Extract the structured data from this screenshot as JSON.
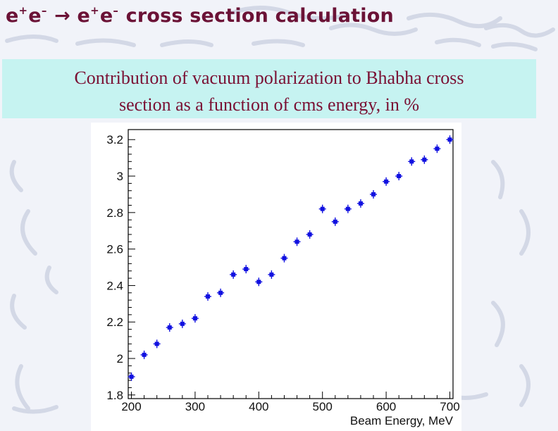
{
  "slide": {
    "title_parts": [
      "e",
      "+",
      "e",
      "–",
      " → ",
      "e",
      "+",
      "e",
      "–",
      " cross section calculation"
    ],
    "caption_line1": "Contribution of vacuum polarization to Bhabha cross",
    "caption_line2": "section as a function of cms energy, in %",
    "title_color": "#6b1236",
    "caption_color": "#7a1033",
    "caption_bg": "#c6f3f1"
  },
  "chart_data": {
    "type": "scatter",
    "title": "",
    "xlabel": "Beam Energy, MeV",
    "ylabel": "",
    "xlim": [
      195,
      705
    ],
    "ylim": [
      1.78,
      3.255
    ],
    "xticks": [
      200,
      300,
      400,
      500,
      600,
      700
    ],
    "xtick_labels": [
      "200",
      "300",
      "400",
      "500",
      "600",
      "700"
    ],
    "yticks": [
      1.8,
      2,
      2.2,
      2.4,
      2.6,
      2.8,
      3,
      3.2
    ],
    "ytick_labels": [
      "1.8",
      "2",
      "2.2",
      "2.4",
      "2.6",
      "2.8",
      "3",
      "3.2"
    ],
    "grid": false,
    "marker_color": "#1010e0",
    "series": [
      {
        "x": [
          200,
          220,
          240,
          260,
          280,
          300,
          320,
          340,
          360,
          380,
          400,
          420,
          440,
          460,
          480,
          500,
          520,
          540,
          560,
          580,
          600,
          620,
          640,
          660,
          680,
          700
        ],
        "y": [
          1.9,
          2.02,
          2.08,
          2.17,
          2.19,
          2.22,
          2.34,
          2.36,
          2.46,
          2.49,
          2.42,
          2.46,
          2.55,
          2.64,
          2.68,
          2.82,
          2.75,
          2.82,
          2.85,
          2.9,
          2.97,
          3.0,
          3.08,
          3.09,
          3.15,
          3.2
        ]
      }
    ]
  }
}
